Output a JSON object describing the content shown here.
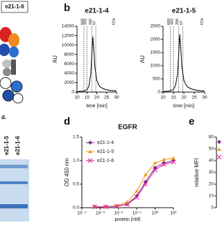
{
  "diagram_label": "e21-1-6",
  "panels": [
    "b",
    "d",
    "e"
  ],
  "gel": {
    "partial_label": "d.",
    "lanes": [
      "e21-1-5",
      "e21-1-6"
    ]
  },
  "chart_data": [
    {
      "type": "line",
      "title": "e21-1-4",
      "xlabel": "time [min]",
      "ylabel": "AU",
      "xlim": [
        10,
        30
      ],
      "xticks": [
        10,
        15,
        20,
        25,
        30
      ],
      "ylim": [
        0,
        14000
      ],
      "yticks": [
        0,
        2000,
        4000,
        6000,
        8000,
        10000,
        12000,
        14000
      ],
      "markers": [
        {
          "x": 13.5,
          "label": "669"
        },
        {
          "x": 15,
          "label": "443"
        },
        {
          "x": 17.5,
          "label": "200"
        },
        {
          "x": 19.5,
          "label": "67"
        }
      ],
      "marker_unit": "kDa",
      "x": [
        10,
        12,
        14,
        15,
        16,
        17,
        17.5,
        18,
        18.5,
        19,
        20,
        21,
        22,
        24,
        26,
        28,
        30
      ],
      "series": [
        {
          "color": "#111111",
          "values": [
            100,
            150,
            300,
            500,
            1200,
            4000,
            8000,
            11800,
            9000,
            5500,
            2500,
            1500,
            1000,
            600,
            400,
            300,
            250
          ]
        }
      ]
    },
    {
      "type": "line",
      "title": "e21-1-5",
      "xlabel": "time [min]",
      "ylabel": "AU",
      "xlim": [
        10,
        30
      ],
      "xticks": [
        10,
        15,
        20,
        25,
        30
      ],
      "ylim": [
        0,
        2500
      ],
      "yticks": [
        0,
        500,
        1000,
        1500,
        2000,
        2500
      ],
      "markers": [
        {
          "x": 13.5,
          "label": "669"
        },
        {
          "x": 15,
          "label": "443"
        },
        {
          "x": 17.5,
          "label": "200"
        },
        {
          "x": 19.5,
          "label": "67"
        }
      ],
      "marker_unit": "kDa",
      "x": [
        10,
        12,
        14,
        15,
        16,
        17,
        17.5,
        18,
        18.5,
        19,
        20,
        21,
        22,
        24,
        26,
        28,
        30
      ],
      "series": [
        {
          "color": "#111111",
          "values": [
            20,
            30,
            60,
            100,
            250,
            700,
            1400,
            2200,
            1700,
            1000,
            450,
            280,
            180,
            110,
            70,
            50,
            40
          ]
        }
      ]
    },
    {
      "type": "line",
      "title": "EGFR",
      "xlabel": "protein [nM]",
      "ylabel": "OD 450 nm",
      "xscale": "log",
      "legend": "upper left",
      "xlim": [
        0.0001,
        10
      ],
      "xticks": [
        {
          "value": 0.0001,
          "label": "10⁻⁴"
        },
        {
          "value": 0.001,
          "label": "10⁻³"
        },
        {
          "value": 0.01,
          "label": "10⁻²"
        },
        {
          "value": 0.1,
          "label": "10⁻¹"
        },
        {
          "value": 1,
          "label": "10⁰"
        },
        {
          "value": 10,
          "label": "10¹"
        }
      ],
      "ylim": [
        0,
        1.5
      ],
      "yticks": [
        {
          "value": 0,
          "label": "0.0"
        },
        {
          "value": 0.5,
          "label": "0.5"
        },
        {
          "value": 1,
          "label": "1.0"
        },
        {
          "value": 1.5,
          "label": "1.5"
        }
      ],
      "x": [
        0.0005,
        0.002,
        0.008,
        0.03,
        0.1,
        0.3,
        1,
        3,
        10
      ],
      "series": [
        {
          "name": "e21-1-4",
          "color": "#7b2d8e",
          "marker": "diamond",
          "values": [
            0.02,
            0.02,
            0.03,
            0.08,
            0.25,
            0.55,
            0.85,
            0.95,
            1.0
          ]
        },
        {
          "name": "e21-1-5",
          "color": "#f39c1f",
          "marker": "triangle",
          "values": [
            0.02,
            0.02,
            0.04,
            0.12,
            0.35,
            0.7,
            0.95,
            1.02,
            1.05
          ]
        },
        {
          "name": "e21-1-6",
          "color": "#e0309a",
          "marker": "x",
          "values": [
            0.02,
            0.02,
            0.03,
            0.07,
            0.22,
            0.5,
            0.8,
            0.92,
            0.97
          ]
        }
      ]
    },
    {
      "type": "line",
      "ylabel": "relative MFI",
      "ylim": [
        0,
        60
      ],
      "yticks": [
        0,
        10,
        20,
        30,
        40,
        50,
        60
      ],
      "series": []
    }
  ]
}
